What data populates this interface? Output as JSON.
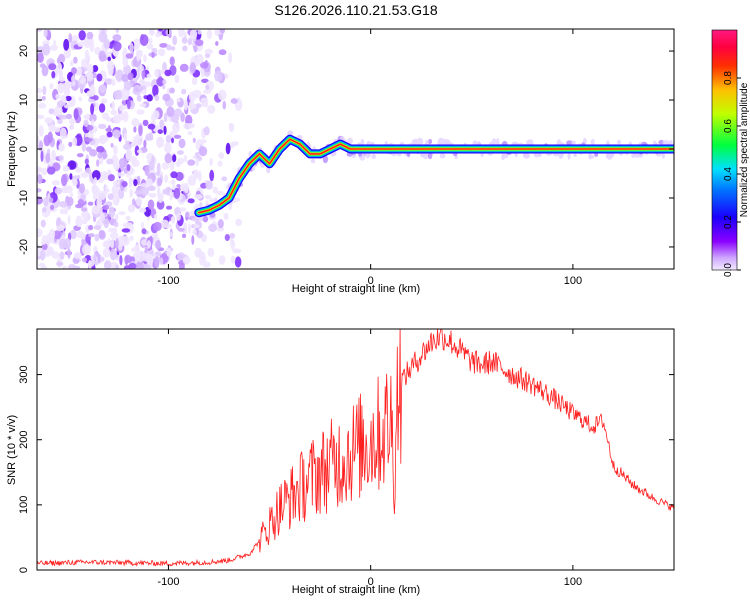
{
  "title": "S126.2026.110.21.53.G18",
  "chart_data": [
    {
      "type": "heatmap",
      "xlabel": "Height of straight line (km)",
      "ylabel": "Frequency (Hz)",
      "xlim": [
        -165,
        150
      ],
      "ylim": [
        -24.5,
        24.5
      ],
      "xticks": [
        -100,
        0,
        100
      ],
      "yticks": [
        -20,
        -10,
        0,
        10,
        20
      ],
      "noise_region_x": [
        -165,
        -80
      ],
      "ridge": {
        "x": [
          -85,
          -80,
          -75,
          -70,
          -65,
          -60,
          -55,
          -50,
          -45,
          -40,
          -35,
          -30,
          -25,
          -20,
          -15,
          -10,
          -5,
          0,
          5,
          10,
          50,
          100,
          150
        ],
        "y": [
          -13,
          -12.5,
          -11.5,
          -10,
          -6,
          -3,
          -1,
          -3,
          0,
          2,
          1,
          -1,
          -1,
          0,
          1,
          0,
          0,
          0,
          0,
          0,
          0,
          0,
          0
        ]
      },
      "colorbar": {
        "label": "Normalized spectral amplitude",
        "range": [
          0,
          1
        ],
        "ticks": [
          "0.0",
          "0.2",
          "0.4",
          "0.6",
          "0.8"
        ],
        "tick_values": [
          0.0,
          0.2,
          0.4,
          0.6,
          0.8
        ],
        "colors": [
          "#e8d9ff",
          "#7a00ff",
          "#0000ff",
          "#00ffff",
          "#00ff00",
          "#ffff00",
          "#ff0000",
          "#ff0088"
        ]
      }
    },
    {
      "type": "line",
      "xlabel": "Height of straight line (km)",
      "ylabel": "SNR (10 * v/v)",
      "xlim": [
        -165,
        150
      ],
      "ylim": [
        0,
        370
      ],
      "xticks": [
        -100,
        0,
        100
      ],
      "yticks": [
        0,
        100,
        200,
        300
      ],
      "color": "#ff2020",
      "x": [
        -165,
        -140,
        -120,
        -100,
        -80,
        -70,
        -60,
        -55,
        -50,
        -45,
        -40,
        -35,
        -30,
        -25,
        -20,
        -15,
        -10,
        -5,
        0,
        5,
        10,
        12,
        13,
        15,
        20,
        25,
        30,
        35,
        40,
        45,
        50,
        55,
        60,
        70,
        80,
        90,
        100,
        110,
        115,
        120,
        130,
        140,
        150
      ],
      "values": [
        10,
        12,
        11,
        10,
        12,
        15,
        25,
        45,
        70,
        95,
        110,
        125,
        140,
        150,
        160,
        170,
        180,
        190,
        200,
        210,
        230,
        140,
        270,
        290,
        310,
        330,
        350,
        360,
        350,
        335,
        320,
        315,
        320,
        300,
        285,
        265,
        240,
        220,
        230,
        160,
        130,
        110,
        95
      ]
    }
  ]
}
